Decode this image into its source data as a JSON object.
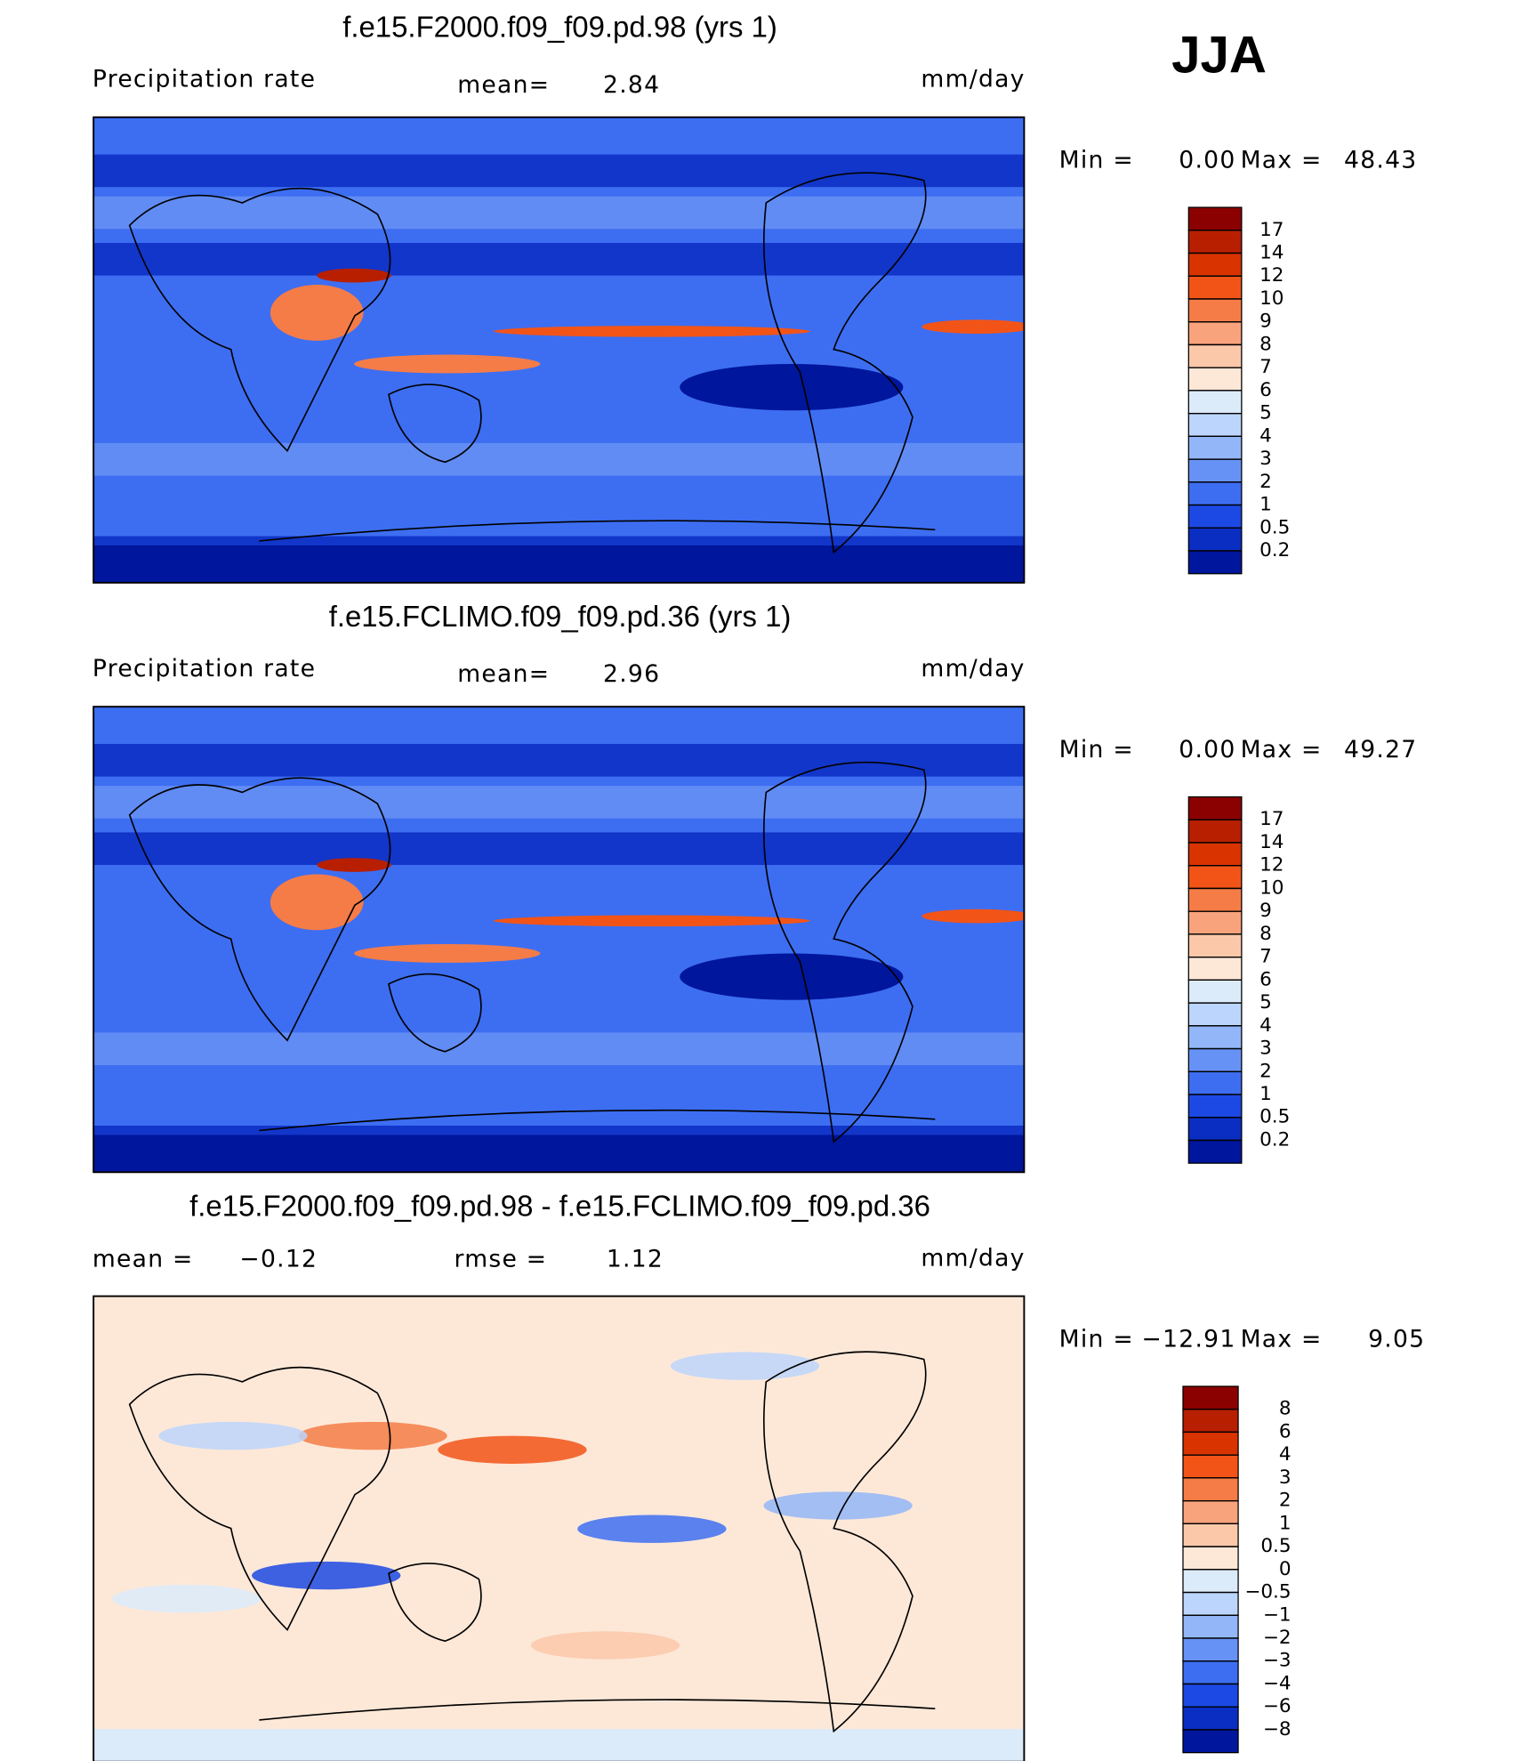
{
  "season": "JJA",
  "chart_data": [
    {
      "type": "contour-map",
      "title": "f.e15.F2000.f09_f09.pd.98 (yrs 1)",
      "variable": "Precipitation rate",
      "stats": [
        {
          "label": "mean=",
          "value": 2.84
        }
      ],
      "units": "mm/day",
      "min_label": "Min =",
      "min": {
        "value": 0,
        "label": "0.00"
      },
      "max_label": "Max =",
      "max": 48.43,
      "levels": [
        17,
        14,
        12,
        10,
        9,
        8,
        7,
        6,
        5,
        4,
        3,
        2,
        1,
        0.5,
        0.2
      ],
      "colors": [
        "#8b0000",
        "#b81f00",
        "#d93300",
        "#f25418",
        "#f57c47",
        "#f9a37c",
        "#fcc8aa",
        "#fde8d8",
        "#dcebfa",
        "#bcd5fc",
        "#93b6f8",
        "#6792f5",
        "#3d6ef2",
        "#1c49e4",
        "#0a2dc2",
        "#00169c"
      ]
    },
    {
      "type": "contour-map",
      "title": "f.e15.FCLIMO.f09_f09.pd.36 (yrs 1)",
      "variable": "Precipitation rate",
      "stats": [
        {
          "label": "mean=",
          "value": 2.96
        }
      ],
      "units": "mm/day",
      "min_label": "Min =",
      "min": {
        "value": 0,
        "label": "0.00"
      },
      "max_label": "Max =",
      "max": 49.27,
      "levels": [
        17,
        14,
        12,
        10,
        9,
        8,
        7,
        6,
        5,
        4,
        3,
        2,
        1,
        0.5,
        0.2
      ],
      "colors": [
        "#8b0000",
        "#b81f00",
        "#d93300",
        "#f25418",
        "#f57c47",
        "#f9a37c",
        "#fcc8aa",
        "#fde8d8",
        "#dcebfa",
        "#bcd5fc",
        "#93b6f8",
        "#6792f5",
        "#3d6ef2",
        "#1c49e4",
        "#0a2dc2",
        "#00169c"
      ]
    },
    {
      "type": "contour-map-diff",
      "title": "f.e15.F2000.f09_f09.pd.98 - f.e15.FCLIMO.f09_f09.pd.36",
      "stats": [
        {
          "label": "mean =",
          "value": {
            "value": -0.12,
            "label": "−0.12"
          }
        },
        {
          "label": "rmse =",
          "value": 1.12
        }
      ],
      "units": "mm/day",
      "min_label": "Min =",
      "min": {
        "value": -12.91,
        "label": "−12.91"
      },
      "max_label": "Max =",
      "max": 9.05,
      "levels": [
        8,
        6,
        4,
        3,
        2,
        1,
        0.5,
        0,
        {
          "value": -0.5,
          "label": "−0.5"
        },
        {
          "value": -1,
          "label": "−1"
        },
        {
          "value": -2,
          "label": "−2"
        },
        {
          "value": -3,
          "label": "−3"
        },
        {
          "value": -4,
          "label": "−4"
        },
        {
          "value": -6,
          "label": "−6"
        },
        {
          "value": -8,
          "label": "−8"
        }
      ],
      "colors": [
        "#8b0000",
        "#b81f00",
        "#d93300",
        "#f25418",
        "#f57c47",
        "#f9a37c",
        "#fcc8aa",
        "#fde8d8",
        "#dcebfa",
        "#bcd5fc",
        "#93b6f8",
        "#6792f5",
        "#3d6ef2",
        "#1c49e4",
        "#0a2dc2",
        "#00169c"
      ]
    }
  ]
}
